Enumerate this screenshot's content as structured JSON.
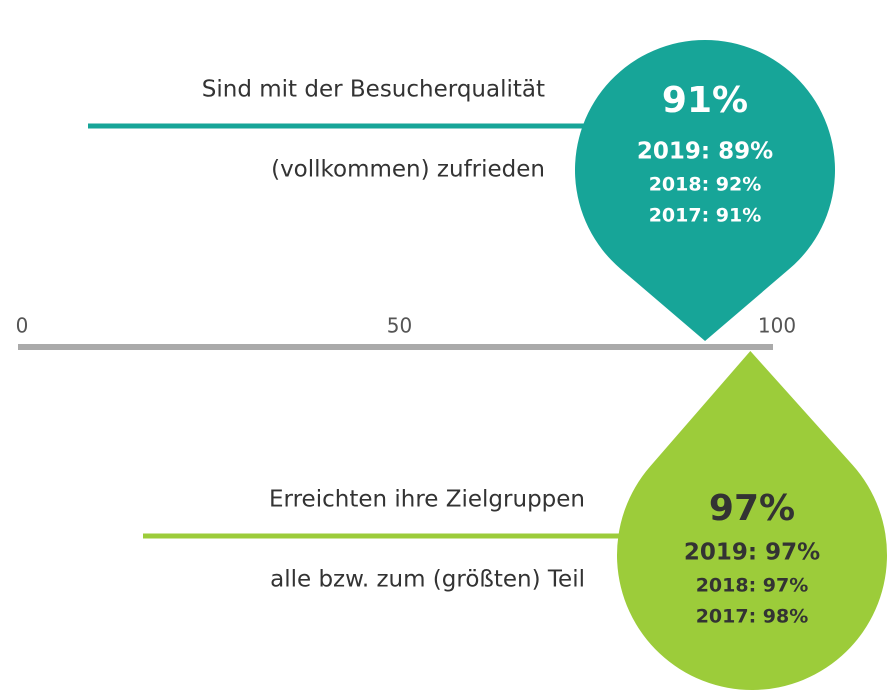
{
  "chart_data": {
    "type": "drop",
    "xlim": [
      0,
      100
    ],
    "xticks": [
      0,
      50,
      100
    ],
    "axis_color": "#aaaaaa",
    "series": [
      {
        "name": "Sind mit der Besucherqualität",
        "subtitle": "(vollkommen) zufrieden",
        "color": "#17a598",
        "text_color": "#ffffff",
        "values": [
          91
        ],
        "value_labels": [
          "91%"
        ],
        "history": [
          "2019: 89%",
          "2018: 92%",
          "2017: 91%"
        ]
      },
      {
        "name": "Erreichten ihre Zielgruppen",
        "subtitle": "alle bzw. zum (größten) Teil",
        "color": "#9ccc3a",
        "text_color": "#333333",
        "values": [
          97
        ],
        "value_labels": [
          "97%"
        ],
        "history": [
          "2019: 97%",
          "2018: 97%",
          "2017: 98%"
        ]
      }
    ]
  }
}
